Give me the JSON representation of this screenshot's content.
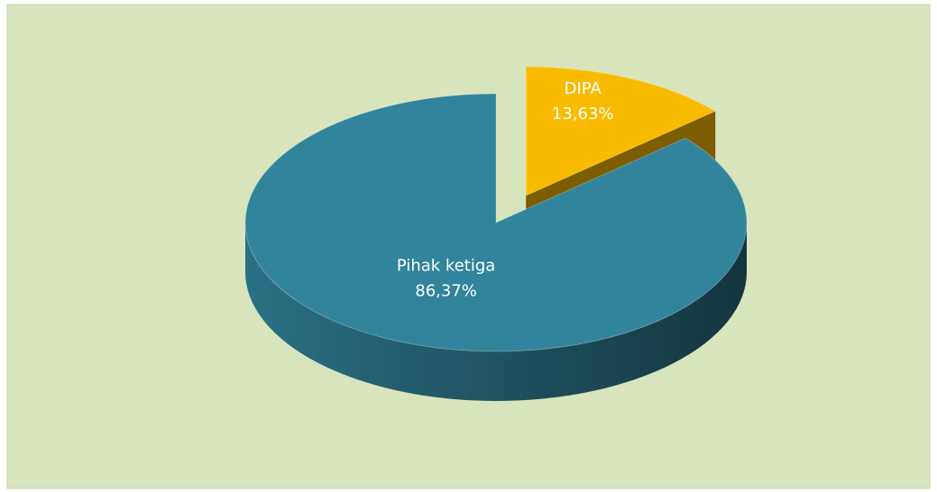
{
  "chart_data": {
    "type": "pie",
    "categories": [
      "DIPA",
      "Pihak ketiga"
    ],
    "values": [
      13.63,
      86.37
    ],
    "value_labels": [
      "13,63%",
      "86,37%"
    ],
    "colors": [
      "#f9bb00",
      "#31849b"
    ]
  }
}
